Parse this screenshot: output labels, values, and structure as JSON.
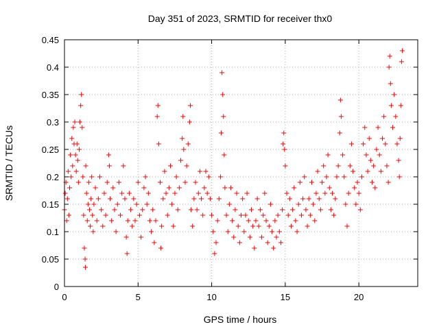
{
  "chart_data": {
    "type": "scatter",
    "title": "Day 351 of 2023, SRMTID for receiver thx0",
    "xlabel": "GPS time / hours",
    "ylabel": "SRMTID / TECUs",
    "xlim": [
      0,
      24
    ],
    "ylim": [
      0,
      0.45
    ],
    "xticks": [
      0,
      5,
      10,
      15,
      20
    ],
    "yticks": [
      0,
      0.05,
      0.1,
      0.15,
      0.2,
      0.25,
      0.3,
      0.35,
      0.4,
      0.45
    ],
    "xtick_labels": [
      "0",
      "5",
      "10",
      "15",
      "20"
    ],
    "ytick_labels": [
      "0",
      "0.05",
      "0.1",
      "0.15",
      "0.2",
      "0.25",
      "0.3",
      "0.35",
      "0.4",
      "0.45"
    ],
    "grid": true,
    "marker": "+",
    "color": "#ff0000",
    "series": [
      {
        "points": [
          [
            0.0,
            0.14
          ],
          [
            0.05,
            0.17
          ],
          [
            0.1,
            0.19
          ],
          [
            0.15,
            0.12
          ],
          [
            0.2,
            0.16
          ],
          [
            0.25,
            0.21
          ],
          [
            0.3,
            0.13
          ],
          [
            0.35,
            0.18
          ],
          [
            0.4,
            0.24
          ],
          [
            0.45,
            0.2
          ],
          [
            0.5,
            0.27
          ],
          [
            0.55,
            0.22
          ],
          [
            0.6,
            0.29
          ],
          [
            0.65,
            0.26
          ],
          [
            0.7,
            0.3
          ],
          [
            0.75,
            0.24
          ],
          [
            0.8,
            0.21
          ],
          [
            0.85,
            0.26
          ],
          [
            0.9,
            0.23
          ],
          [
            0.95,
            0.19
          ],
          [
            1.0,
            0.25
          ],
          [
            1.05,
            0.3
          ],
          [
            1.1,
            0.33
          ],
          [
            1.15,
            0.35
          ],
          [
            1.2,
            0.29
          ],
          [
            1.25,
            0.2
          ],
          [
            1.3,
            0.13
          ],
          [
            1.35,
            0.07
          ],
          [
            1.4,
            0.05
          ],
          [
            1.42,
            0.035
          ],
          [
            1.45,
            0.22
          ],
          [
            1.5,
            0.17
          ],
          [
            1.55,
            0.12
          ],
          [
            1.6,
            0.15
          ],
          [
            1.65,
            0.19
          ],
          [
            1.7,
            0.14
          ],
          [
            1.75,
            0.11
          ],
          [
            1.8,
            0.16
          ],
          [
            1.85,
            0.2
          ],
          [
            1.9,
            0.13
          ],
          [
            1.95,
            0.1
          ],
          [
            2.0,
            0.15
          ],
          [
            2.1,
            0.18
          ],
          [
            2.2,
            0.12
          ],
          [
            2.3,
            0.16
          ],
          [
            2.4,
            0.2
          ],
          [
            2.5,
            0.14
          ],
          [
            2.6,
            0.11
          ],
          [
            2.7,
            0.17
          ],
          [
            2.8,
            0.13
          ],
          [
            2.9,
            0.19
          ],
          [
            3.0,
            0.24
          ],
          [
            3.05,
            0.22
          ],
          [
            3.1,
            0.16
          ],
          [
            3.2,
            0.12
          ],
          [
            3.3,
            0.18
          ],
          [
            3.4,
            0.14
          ],
          [
            3.5,
            0.1
          ],
          [
            3.6,
            0.15
          ],
          [
            3.7,
            0.19
          ],
          [
            3.8,
            0.13
          ],
          [
            3.9,
            0.17
          ],
          [
            4.0,
            0.22
          ],
          [
            4.1,
            0.16
          ],
          [
            4.2,
            0.09
          ],
          [
            4.25,
            0.06
          ],
          [
            4.3,
            0.12
          ],
          [
            4.4,
            0.17
          ],
          [
            4.5,
            0.14
          ],
          [
            4.6,
            0.11
          ],
          [
            4.7,
            0.16
          ],
          [
            4.8,
            0.12
          ],
          [
            4.9,
            0.15
          ],
          [
            5.0,
            0.19
          ],
          [
            5.1,
            0.13
          ],
          [
            5.2,
            0.09
          ],
          [
            5.3,
            0.14
          ],
          [
            5.4,
            0.18
          ],
          [
            5.5,
            0.2
          ],
          [
            5.6,
            0.15
          ],
          [
            5.7,
            0.17
          ],
          [
            5.8,
            0.12
          ],
          [
            5.9,
            0.1
          ],
          [
            6.0,
            0.14
          ],
          [
            6.1,
            0.08
          ],
          [
            6.2,
            0.12
          ],
          [
            6.3,
            0.31
          ],
          [
            6.35,
            0.33
          ],
          [
            6.4,
            0.26
          ],
          [
            6.5,
            0.19
          ],
          [
            6.55,
            0.07
          ],
          [
            6.6,
            0.11
          ],
          [
            6.7,
            0.16
          ],
          [
            6.8,
            0.21
          ],
          [
            6.9,
            0.17
          ],
          [
            7.0,
            0.13
          ],
          [
            7.1,
            0.18
          ],
          [
            7.2,
            0.22
          ],
          [
            7.3,
            0.15
          ],
          [
            7.4,
            0.11
          ],
          [
            7.5,
            0.17
          ],
          [
            7.6,
            0.2
          ],
          [
            7.7,
            0.14
          ],
          [
            7.8,
            0.18
          ],
          [
            7.9,
            0.23
          ],
          [
            8.0,
            0.27
          ],
          [
            8.05,
            0.31
          ],
          [
            8.1,
            0.25
          ],
          [
            8.2,
            0.19
          ],
          [
            8.3,
            0.22
          ],
          [
            8.4,
            0.26
          ],
          [
            8.5,
            0.3
          ],
          [
            8.55,
            0.33
          ],
          [
            8.6,
            0.14
          ],
          [
            8.7,
            0.11
          ],
          [
            8.8,
            0.16
          ],
          [
            8.9,
            0.19
          ],
          [
            9.0,
            0.14
          ],
          [
            9.1,
            0.17
          ],
          [
            9.2,
            0.21
          ],
          [
            9.3,
            0.16
          ],
          [
            9.4,
            0.13
          ],
          [
            9.5,
            0.18
          ],
          [
            9.6,
            0.21
          ],
          [
            9.7,
            0.17
          ],
          [
            9.8,
            0.2
          ],
          [
            9.9,
            0.16
          ],
          [
            10.0,
            0.13
          ],
          [
            10.1,
            0.1
          ],
          [
            10.2,
            0.06
          ],
          [
            10.3,
            0.08
          ],
          [
            10.4,
            0.12
          ],
          [
            10.5,
            0.16
          ],
          [
            10.6,
            0.2
          ],
          [
            10.65,
            0.28
          ],
          [
            10.7,
            0.39
          ],
          [
            10.75,
            0.35
          ],
          [
            10.8,
            0.31
          ],
          [
            10.85,
            0.24
          ],
          [
            10.9,
            0.18
          ],
          [
            11.0,
            0.13
          ],
          [
            11.1,
            0.1
          ],
          [
            11.2,
            0.15
          ],
          [
            11.3,
            0.18
          ],
          [
            11.4,
            0.12
          ],
          [
            11.5,
            0.09
          ],
          [
            11.6,
            0.14
          ],
          [
            11.7,
            0.17
          ],
          [
            11.8,
            0.11
          ],
          [
            11.9,
            0.08
          ],
          [
            12.0,
            0.13
          ],
          [
            12.1,
            0.16
          ],
          [
            12.2,
            0.1
          ],
          [
            12.3,
            0.13
          ],
          [
            12.4,
            0.17
          ],
          [
            12.5,
            0.12
          ],
          [
            12.6,
            0.09
          ],
          [
            12.7,
            0.14
          ],
          [
            12.8,
            0.11
          ],
          [
            12.9,
            0.07
          ],
          [
            13.0,
            0.12
          ],
          [
            13.1,
            0.16
          ],
          [
            13.2,
            0.11
          ],
          [
            13.3,
            0.14
          ],
          [
            13.4,
            0.09
          ],
          [
            13.5,
            0.13
          ],
          [
            13.6,
            0.17
          ],
          [
            13.7,
            0.12
          ],
          [
            13.8,
            0.08
          ],
          [
            13.9,
            0.11
          ],
          [
            14.0,
            0.15
          ],
          [
            14.1,
            0.1
          ],
          [
            14.2,
            0.07
          ],
          [
            14.3,
            0.12
          ],
          [
            14.4,
            0.09
          ],
          [
            14.5,
            0.13
          ],
          [
            14.6,
            0.1
          ],
          [
            14.7,
            0.08
          ],
          [
            14.8,
            0.14
          ],
          [
            14.85,
            0.26
          ],
          [
            14.9,
            0.28
          ],
          [
            14.95,
            0.25
          ],
          [
            15.0,
            0.22
          ],
          [
            15.1,
            0.17
          ],
          [
            15.2,
            0.13
          ],
          [
            15.3,
            0.16
          ],
          [
            15.4,
            0.11
          ],
          [
            15.5,
            0.14
          ],
          [
            15.6,
            0.18
          ],
          [
            15.7,
            0.12
          ],
          [
            15.8,
            0.1
          ],
          [
            15.9,
            0.15
          ],
          [
            16.0,
            0.19
          ],
          [
            16.1,
            0.13
          ],
          [
            16.2,
            0.16
          ],
          [
            16.3,
            0.2
          ],
          [
            16.4,
            0.14
          ],
          [
            16.5,
            0.11
          ],
          [
            16.6,
            0.16
          ],
          [
            16.7,
            0.13
          ],
          [
            16.8,
            0.19
          ],
          [
            16.9,
            0.15
          ],
          [
            17.0,
            0.12
          ],
          [
            17.1,
            0.17
          ],
          [
            17.2,
            0.21
          ],
          [
            17.3,
            0.16
          ],
          [
            17.4,
            0.14
          ],
          [
            17.5,
            0.19
          ],
          [
            17.6,
            0.22
          ],
          [
            17.7,
            0.17
          ],
          [
            17.8,
            0.2
          ],
          [
            17.9,
            0.24
          ],
          [
            18.0,
            0.18
          ],
          [
            18.1,
            0.14
          ],
          [
            18.2,
            0.17
          ],
          [
            18.3,
            0.13
          ],
          [
            18.4,
            0.16
          ],
          [
            18.5,
            0.2
          ],
          [
            18.6,
            0.22
          ],
          [
            18.7,
            0.28
          ],
          [
            18.75,
            0.34
          ],
          [
            18.8,
            0.31
          ],
          [
            18.9,
            0.24
          ],
          [
            19.0,
            0.2
          ],
          [
            19.1,
            0.15
          ],
          [
            19.2,
            0.11
          ],
          [
            19.3,
            0.17
          ],
          [
            19.4,
            0.22
          ],
          [
            19.5,
            0.26
          ],
          [
            19.6,
            0.21
          ],
          [
            19.7,
            0.18
          ],
          [
            19.8,
            0.15
          ],
          [
            19.9,
            0.19
          ],
          [
            20.0,
            0.17
          ],
          [
            20.1,
            0.14
          ],
          [
            20.2,
            0.2
          ],
          [
            20.3,
            0.26
          ],
          [
            20.4,
            0.29
          ],
          [
            20.5,
            0.24
          ],
          [
            20.6,
            0.21
          ],
          [
            20.7,
            0.27
          ],
          [
            20.8,
            0.23
          ],
          [
            20.9,
            0.19
          ],
          [
            21.0,
            0.22
          ],
          [
            21.1,
            0.18
          ],
          [
            21.2,
            0.25
          ],
          [
            21.3,
            0.29
          ],
          [
            21.4,
            0.24
          ],
          [
            21.5,
            0.21
          ],
          [
            21.6,
            0.27
          ],
          [
            21.7,
            0.31
          ],
          [
            21.8,
            0.26
          ],
          [
            21.9,
            0.22
          ],
          [
            22.0,
            0.19
          ],
          [
            22.05,
            0.4
          ],
          [
            22.1,
            0.42
          ],
          [
            22.15,
            0.37
          ],
          [
            22.2,
            0.33
          ],
          [
            22.3,
            0.29
          ],
          [
            22.4,
            0.35
          ],
          [
            22.5,
            0.31
          ],
          [
            22.6,
            0.26
          ],
          [
            22.7,
            0.23
          ],
          [
            22.75,
            0.2
          ],
          [
            22.8,
            0.27
          ],
          [
            22.85,
            0.33
          ],
          [
            22.9,
            0.41
          ],
          [
            22.95,
            0.43
          ]
        ]
      }
    ]
  }
}
